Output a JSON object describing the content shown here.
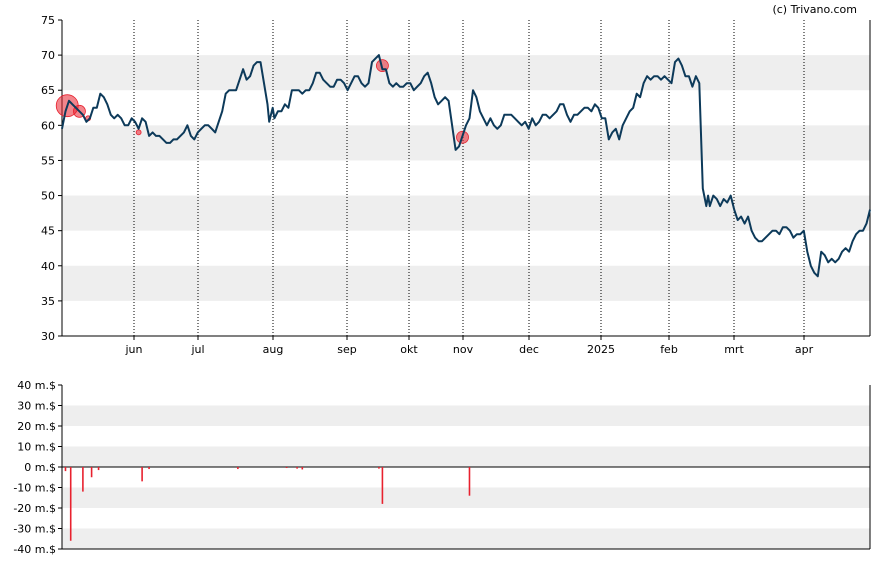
{
  "credit": "(c) Trivano.com",
  "colors": {
    "price_line": "#0d3a5a",
    "marker": "#e8212e",
    "band": "#eeeeee",
    "bar": "#e8212e",
    "axis": "#000000",
    "vgrid": "#000000"
  },
  "chart_data": [
    {
      "type": "line",
      "series": [
        {
          "values": [
            [
              0,
              59.5
            ],
            [
              2,
              62
            ],
            [
              4,
              63.5
            ],
            [
              6,
              63
            ],
            [
              8,
              62.5
            ],
            [
              10,
              62
            ],
            [
              12,
              61.5
            ],
            [
              14,
              60.5
            ],
            [
              16,
              61
            ],
            [
              18,
              62.5
            ],
            [
              20,
              62.5
            ],
            [
              22,
              64.5
            ],
            [
              24,
              64
            ],
            [
              26,
              63
            ],
            [
              28,
              61.5
            ],
            [
              30,
              61
            ],
            [
              32,
              61.5
            ],
            [
              34,
              61
            ],
            [
              36,
              60
            ],
            [
              38,
              60
            ],
            [
              40,
              61
            ],
            [
              42,
              60.5
            ],
            [
              44,
              59.5
            ],
            [
              46,
              61
            ],
            [
              48,
              60.5
            ],
            [
              50,
              58.5
            ],
            [
              52,
              59
            ],
            [
              54,
              58.5
            ],
            [
              56,
              58.5
            ],
            [
              58,
              58
            ],
            [
              60,
              57.5
            ],
            [
              62,
              57.5
            ],
            [
              64,
              58
            ],
            [
              66,
              58
            ],
            [
              68,
              58.5
            ],
            [
              70,
              59
            ],
            [
              72,
              60
            ],
            [
              74,
              58.5
            ],
            [
              76,
              58
            ],
            [
              78,
              59
            ],
            [
              80,
              59.5
            ],
            [
              82,
              60
            ],
            [
              84,
              60
            ],
            [
              86,
              59.5
            ],
            [
              88,
              59
            ],
            [
              90,
              60.5
            ],
            [
              92,
              62
            ],
            [
              94,
              64.5
            ],
            [
              96,
              65
            ],
            [
              98,
              65
            ],
            [
              100,
              65
            ],
            [
              102,
              66.5
            ],
            [
              104,
              68
            ],
            [
              106,
              66.5
            ],
            [
              108,
              67
            ],
            [
              110,
              68.5
            ],
            [
              112,
              69
            ],
            [
              114,
              69
            ],
            [
              116,
              66
            ],
            [
              118,
              63
            ],
            [
              119,
              60.5
            ],
            [
              121,
              62.5
            ],
            [
              122,
              61
            ],
            [
              124,
              62
            ],
            [
              126,
              62
            ],
            [
              128,
              63
            ],
            [
              130,
              62.5
            ],
            [
              132,
              65
            ],
            [
              134,
              65
            ],
            [
              136,
              65
            ],
            [
              138,
              64.5
            ],
            [
              140,
              65
            ],
            [
              142,
              65
            ],
            [
              144,
              66
            ],
            [
              146,
              67.5
            ],
            [
              148,
              67.5
            ],
            [
              150,
              66.5
            ],
            [
              152,
              66
            ],
            [
              154,
              65.5
            ],
            [
              156,
              65.5
            ],
            [
              158,
              66.5
            ],
            [
              160,
              66.5
            ],
            [
              162,
              66
            ],
            [
              164,
              65
            ],
            [
              166,
              66
            ],
            [
              168,
              67
            ],
            [
              170,
              67
            ],
            [
              172,
              66
            ],
            [
              174,
              65.5
            ],
            [
              176,
              66
            ],
            [
              178,
              69
            ],
            [
              180,
              69.5
            ],
            [
              182,
              70
            ],
            [
              184,
              68
            ],
            [
              186,
              68
            ],
            [
              188,
              66
            ],
            [
              190,
              65.5
            ],
            [
              192,
              66
            ],
            [
              194,
              65.5
            ],
            [
              196,
              65.5
            ],
            [
              198,
              66
            ],
            [
              200,
              66
            ],
            [
              202,
              65
            ],
            [
              204,
              65.5
            ],
            [
              206,
              66
            ],
            [
              208,
              67
            ],
            [
              210,
              67.5
            ],
            [
              212,
              66
            ],
            [
              214,
              64
            ],
            [
              216,
              63
            ],
            [
              218,
              63.5
            ],
            [
              220,
              64
            ],
            [
              222,
              63.5
            ],
            [
              224,
              60
            ],
            [
              226,
              56.5
            ],
            [
              228,
              57
            ],
            [
              230,
              58.5
            ],
            [
              232,
              60
            ],
            [
              234,
              61
            ],
            [
              236,
              65
            ],
            [
              238,
              64
            ],
            [
              240,
              62
            ],
            [
              242,
              61
            ],
            [
              244,
              60
            ],
            [
              246,
              61
            ],
            [
              248,
              60
            ],
            [
              250,
              59.5
            ],
            [
              252,
              60
            ],
            [
              254,
              61.5
            ],
            [
              256,
              61.5
            ],
            [
              258,
              61.5
            ],
            [
              260,
              61
            ],
            [
              262,
              60.5
            ],
            [
              264,
              60
            ],
            [
              266,
              60.5
            ],
            [
              268,
              59.5
            ],
            [
              270,
              61
            ],
            [
              272,
              60
            ],
            [
              274,
              60.5
            ],
            [
              276,
              61.5
            ],
            [
              278,
              61.5
            ],
            [
              280,
              61
            ],
            [
              282,
              61.5
            ],
            [
              284,
              62
            ],
            [
              286,
              63
            ],
            [
              288,
              63
            ],
            [
              290,
              61.5
            ],
            [
              292,
              60.5
            ],
            [
              294,
              61.5
            ],
            [
              296,
              61.5
            ],
            [
              298,
              62
            ],
            [
              300,
              62.5
            ],
            [
              302,
              62.5
            ],
            [
              304,
              62
            ],
            [
              306,
              63
            ],
            [
              308,
              62.5
            ],
            [
              310,
              61
            ],
            [
              312,
              61
            ],
            [
              314,
              58
            ],
            [
              316,
              59
            ],
            [
              318,
              59.5
            ],
            [
              320,
              58
            ],
            [
              322,
              60
            ],
            [
              324,
              61
            ],
            [
              326,
              62
            ],
            [
              328,
              62.5
            ],
            [
              330,
              64.5
            ],
            [
              332,
              64
            ],
            [
              334,
              66
            ],
            [
              336,
              67
            ],
            [
              338,
              66.5
            ],
            [
              340,
              67
            ],
            [
              342,
              67
            ],
            [
              344,
              66.5
            ],
            [
              346,
              67
            ],
            [
              348,
              66.5
            ],
            [
              350,
              66
            ],
            [
              352,
              69
            ],
            [
              354,
              69.5
            ],
            [
              356,
              68.5
            ],
            [
              358,
              67
            ],
            [
              360,
              67
            ],
            [
              362,
              65.5
            ],
            [
              364,
              67
            ],
            [
              366,
              66
            ],
            [
              368,
              51
            ],
            [
              370,
              48.5
            ],
            [
              371,
              50
            ],
            [
              372,
              48.5
            ],
            [
              374,
              50
            ],
            [
              376,
              49.5
            ],
            [
              378,
              48.5
            ],
            [
              380,
              49.5
            ],
            [
              382,
              49
            ],
            [
              384,
              50
            ],
            [
              386,
              48
            ],
            [
              388,
              46.5
            ],
            [
              390,
              47
            ],
            [
              392,
              46
            ],
            [
              394,
              47
            ],
            [
              396,
              45
            ],
            [
              398,
              44
            ],
            [
              400,
              43.5
            ],
            [
              402,
              43.5
            ],
            [
              404,
              44
            ],
            [
              406,
              44.5
            ],
            [
              408,
              45
            ],
            [
              410,
              45
            ],
            [
              412,
              44.5
            ],
            [
              414,
              45.5
            ],
            [
              416,
              45.5
            ],
            [
              418,
              45
            ],
            [
              420,
              44
            ],
            [
              422,
              44.5
            ],
            [
              424,
              44.5
            ],
            [
              426,
              45
            ],
            [
              428,
              42
            ],
            [
              430,
              40
            ],
            [
              432,
              39
            ],
            [
              434,
              38.5
            ],
            [
              436,
              42
            ],
            [
              438,
              41.5
            ],
            [
              440,
              40.5
            ],
            [
              442,
              41
            ],
            [
              444,
              40.5
            ],
            [
              446,
              41
            ],
            [
              448,
              42
            ],
            [
              450,
              42.5
            ],
            [
              452,
              42
            ],
            [
              454,
              43.5
            ],
            [
              456,
              44.5
            ],
            [
              458,
              45
            ],
            [
              460,
              45
            ],
            [
              462,
              46
            ],
            [
              464,
              48
            ]
          ]
        }
      ],
      "ylim": [
        30,
        75
      ],
      "ytick_labels": [
        "30",
        "35",
        "40",
        "45",
        "50",
        "55",
        "60",
        "65",
        "70",
        "75"
      ],
      "xtick_labels": [
        "jun",
        "jul",
        "aug",
        "sep",
        "okt",
        "nov",
        "dec",
        "2025",
        "feb",
        "mrt",
        "apr"
      ],
      "grid": "alternating horizontal bands, dotted vertical month lines",
      "markers": [
        {
          "x": 3,
          "y": 62.8,
          "size": "large"
        },
        {
          "x": 10,
          "y": 62,
          "size": "medium"
        },
        {
          "x": 15,
          "y": 61,
          "size": "small"
        },
        {
          "x": 44,
          "y": 59,
          "size": "small"
        },
        {
          "x": 184,
          "y": 68.5,
          "size": "medium"
        },
        {
          "x": 230,
          "y": 58.3,
          "size": "medium"
        }
      ]
    },
    {
      "type": "bar",
      "ylim": [
        -40,
        40
      ],
      "unit": "m.$",
      "ytick_labels": [
        "40 m.$",
        "30 m.$",
        "20 m.$",
        "10 m.$",
        "0 m.$",
        "-10 m.$",
        "-20 m.$",
        "-30 m.$",
        "-40 m.$"
      ],
      "values": [
        [
          2,
          -2
        ],
        [
          5,
          -36
        ],
        [
          12,
          -12
        ],
        [
          17,
          -5
        ],
        [
          21,
          -1.5
        ],
        [
          46,
          -7
        ],
        [
          50,
          -1
        ],
        [
          101,
          -1
        ],
        [
          129,
          -0.5
        ],
        [
          135,
          -0.8
        ],
        [
          138,
          -1.2
        ],
        [
          182,
          -0.8
        ],
        [
          184,
          -18
        ],
        [
          234,
          -14
        ]
      ]
    }
  ]
}
